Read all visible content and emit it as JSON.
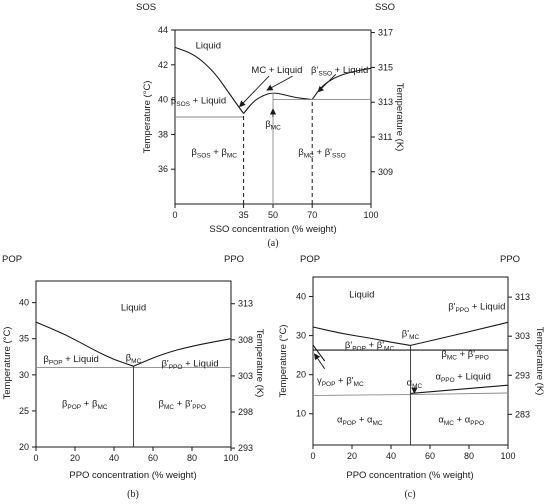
{
  "chart_data": [
    {
      "panel": "(a)",
      "type": "line",
      "title": "",
      "corner_left": "SOS",
      "corner_right": "SSO",
      "xlabel": "SSO concentration (% weight)",
      "ylabel": "Temperature (°C)",
      "ylabel_right": "Temperature (K)",
      "xlim": [
        0,
        100
      ],
      "ylim": [
        34,
        44
      ],
      "ylim_right_K": [
        307.15,
        317.15
      ],
      "xticks": [
        0,
        35,
        50,
        70,
        100
      ],
      "yticks": [
        36,
        38,
        40,
        42,
        44
      ],
      "yticks_right_K": [
        309,
        311,
        313,
        315,
        317
      ],
      "grid": false,
      "series": [
        {
          "role": "liquidus",
          "x": [
            0,
            10,
            20,
            28,
            35
          ],
          "y": [
            43,
            42.6,
            41.6,
            40.3,
            39.2
          ]
        },
        {
          "role": "liquidus",
          "x": [
            35,
            40,
            45,
            50,
            55,
            62,
            70
          ],
          "y": [
            39.2,
            39.9,
            40.25,
            40.4,
            40.3,
            40.1,
            40.0
          ]
        },
        {
          "role": "liquidus",
          "x": [
            70,
            75,
            82,
            90,
            100
          ],
          "y": [
            40.0,
            40.8,
            41.3,
            41.6,
            41.8
          ]
        },
        {
          "role": "solidus",
          "x": [
            0,
            35
          ],
          "y": [
            39.0,
            39.0
          ]
        },
        {
          "role": "solidus",
          "x": [
            50,
            100
          ],
          "y": [
            40.0,
            40.0
          ]
        },
        {
          "role": "dashed",
          "x": [
            35,
            35
          ],
          "y": [
            34,
            39.2
          ]
        },
        {
          "role": "dashed",
          "x": [
            70,
            70
          ],
          "y": [
            34,
            40.0
          ]
        },
        {
          "role": "boundary",
          "x": [
            50,
            50
          ],
          "y": [
            34,
            40.4
          ]
        }
      ],
      "labels": [
        {
          "text": "Liquid",
          "x": 17,
          "y": 43.1
        },
        {
          "text": "MC + Liquid",
          "x": 52,
          "y": 41.7
        },
        {
          "text": "β'SSO + Liquid",
          "x": 84,
          "y": 41.7
        },
        {
          "text": "βSOS + Liquid",
          "x": 12,
          "y": 39.95
        },
        {
          "text": "βMC",
          "x": 50,
          "y": 38.6
        },
        {
          "text": "βSOS + βMC",
          "x": 20,
          "y": 37.0
        },
        {
          "text": "βMC + β'SSO",
          "x": 75,
          "y": 37.0
        }
      ],
      "legend": "none"
    },
    {
      "panel": "(b)",
      "type": "line",
      "title": "",
      "corner_left": "POP",
      "corner_right": "PPO",
      "xlabel": "PPO concentration (% weight)",
      "ylabel": "Temperature (°C)",
      "ylabel_right": "Temperature (K)",
      "xlim": [
        0,
        100
      ],
      "ylim": [
        20,
        43
      ],
      "xticks": [
        0,
        20,
        40,
        60,
        80,
        100
      ],
      "yticks": [
        20,
        25,
        30,
        35,
        40
      ],
      "yticks_right_K": [
        293,
        298,
        303,
        308,
        313
      ],
      "grid": false,
      "series": [
        {
          "role": "liquidus",
          "x": [
            0,
            15,
            30,
            40,
            50
          ],
          "y": [
            37.3,
            35.6,
            33.4,
            32.1,
            31.2
          ]
        },
        {
          "role": "liquidus",
          "x": [
            50,
            65,
            80,
            100
          ],
          "y": [
            31.2,
            32.9,
            34.0,
            35.0
          ]
        },
        {
          "role": "solidus",
          "x": [
            0,
            100
          ],
          "y": [
            31.0,
            31.0
          ]
        },
        {
          "role": "boundary",
          "x": [
            50,
            50
          ],
          "y": [
            20,
            31.2
          ]
        }
      ],
      "labels": [
        {
          "text": "Liquid",
          "x": 50,
          "y": 39.3
        },
        {
          "text": "βPOP + Liquid",
          "x": 18,
          "y": 32.2
        },
        {
          "text": "βMC",
          "x": 50,
          "y": 32.4
        },
        {
          "text": "β'PPO + Liquid",
          "x": 79,
          "y": 31.6
        },
        {
          "text": "βPOP + βMC",
          "x": 25,
          "y": 26.0
        },
        {
          "text": "βMC + β'PPO",
          "x": 75,
          "y": 26.0
        }
      ],
      "legend": "none"
    },
    {
      "panel": "(c)",
      "type": "line",
      "title": "",
      "corner_left": "POP",
      "corner_right": "PPO",
      "xlabel": "PPO concentration (% weight)",
      "ylabel": "Temperature (°C)",
      "ylabel_right": "Temperature (K)",
      "xlim": [
        0,
        100
      ],
      "ylim": [
        2,
        45
      ],
      "xticks": [
        0,
        20,
        40,
        60,
        80,
        100
      ],
      "yticks": [
        10,
        20,
        30,
        40
      ],
      "yticks_right_K": [
        283,
        293,
        303,
        313
      ],
      "grid": false,
      "series": [
        {
          "role": "liquidus",
          "x": [
            0,
            15,
            30,
            40,
            50
          ],
          "y": [
            32.2,
            30.5,
            29.3,
            28.3,
            27.5
          ]
        },
        {
          "role": "liquidus",
          "x": [
            50,
            70,
            85,
            100
          ],
          "y": [
            27.5,
            29.8,
            31.6,
            33.4
          ]
        },
        {
          "role": "curve",
          "x": [
            0,
            50
          ],
          "y": [
            26.3,
            26.3
          ]
        },
        {
          "role": "curve",
          "x": [
            0,
            3,
            6
          ],
          "y": [
            27.6,
            25.5,
            23.5
          ]
        },
        {
          "role": "curve",
          "x": [
            50,
            100
          ],
          "y": [
            26.3,
            26.3
          ]
        },
        {
          "role": "curve",
          "x": [
            50,
            100
          ],
          "y": [
            15.2,
            17.3
          ]
        },
        {
          "role": "solidus",
          "x": [
            0,
            50
          ],
          "y": [
            14.7,
            14.9
          ]
        },
        {
          "role": "solidus",
          "x": [
            50,
            100
          ],
          "y": [
            14.9,
            15.3
          ]
        },
        {
          "role": "boundary",
          "x": [
            50,
            50
          ],
          "y": [
            2,
            27.5
          ]
        }
      ],
      "labels": [
        {
          "text": "Liquid",
          "x": 25,
          "y": 40.5
        },
        {
          "text": "β'PPO + Liquid",
          "x": 84,
          "y": 37.5
        },
        {
          "text": "β'MC",
          "x": 50,
          "y": 30.5
        },
        {
          "text": "β'POP + β'MC",
          "x": 29,
          "y": 27.6
        },
        {
          "text": "βMC + β'PPO",
          "x": 78,
          "y": 25.3
        },
        {
          "text": "γPOP + β'MC",
          "x": 14,
          "y": 18.5
        },
        {
          "text": "αMC",
          "x": 52,
          "y": 18.0
        },
        {
          "text": "αPPO + Liquid",
          "x": 77,
          "y": 19.5
        },
        {
          "text": "αPOP + αMC",
          "x": 24,
          "y": 8.5
        },
        {
          "text": "αMC + αPPO",
          "x": 76,
          "y": 8.5
        }
      ],
      "legend": "none"
    }
  ]
}
